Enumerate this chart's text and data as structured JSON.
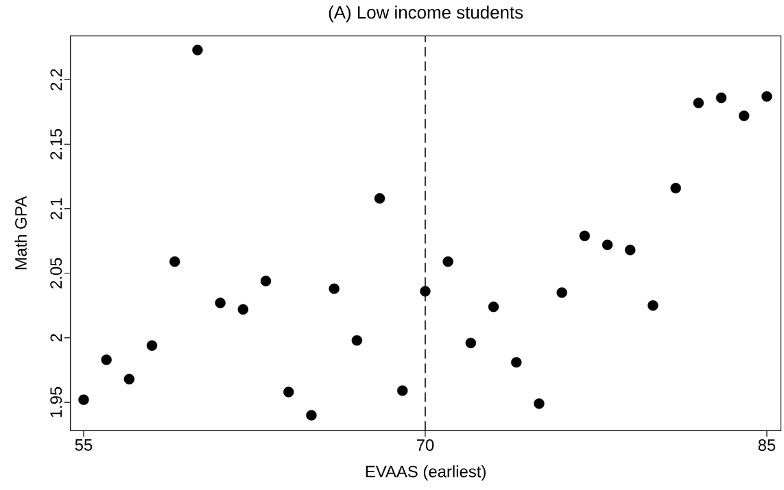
{
  "chart_data": {
    "type": "scatter",
    "title": "(A) Low income students",
    "xlabel": "EVAAS (earliest)",
    "ylabel": "Math GPA",
    "x": [
      55,
      56,
      57,
      58,
      59,
      60,
      61,
      62,
      63,
      64,
      65,
      66,
      67,
      68,
      69,
      70,
      71,
      72,
      73,
      74,
      75,
      76,
      77,
      78,
      79,
      80,
      81,
      82,
      83,
      84,
      85
    ],
    "values": [
      1.952,
      1.983,
      1.968,
      1.994,
      2.059,
      2.223,
      2.027,
      2.022,
      2.044,
      1.958,
      1.94,
      2.038,
      1.998,
      2.108,
      1.959,
      2.036,
      2.059,
      1.996,
      2.024,
      1.981,
      1.949,
      2.035,
      2.079,
      2.072,
      2.068,
      2.025,
      2.116,
      2.182,
      2.186,
      2.172,
      2.187
    ],
    "color": "#000000",
    "marker": "circle",
    "xlim": [
      54.42,
      85.62
    ],
    "ylim": [
      1.928,
      2.234
    ],
    "xticks": [
      55,
      70,
      85
    ],
    "yticks": [
      1.95,
      2,
      2.05,
      2.1,
      2.15,
      2.2
    ],
    "ref_lines": [
      {
        "axis": "x",
        "value": 70,
        "color": "#333333",
        "line_style": "dashed"
      }
    ]
  }
}
